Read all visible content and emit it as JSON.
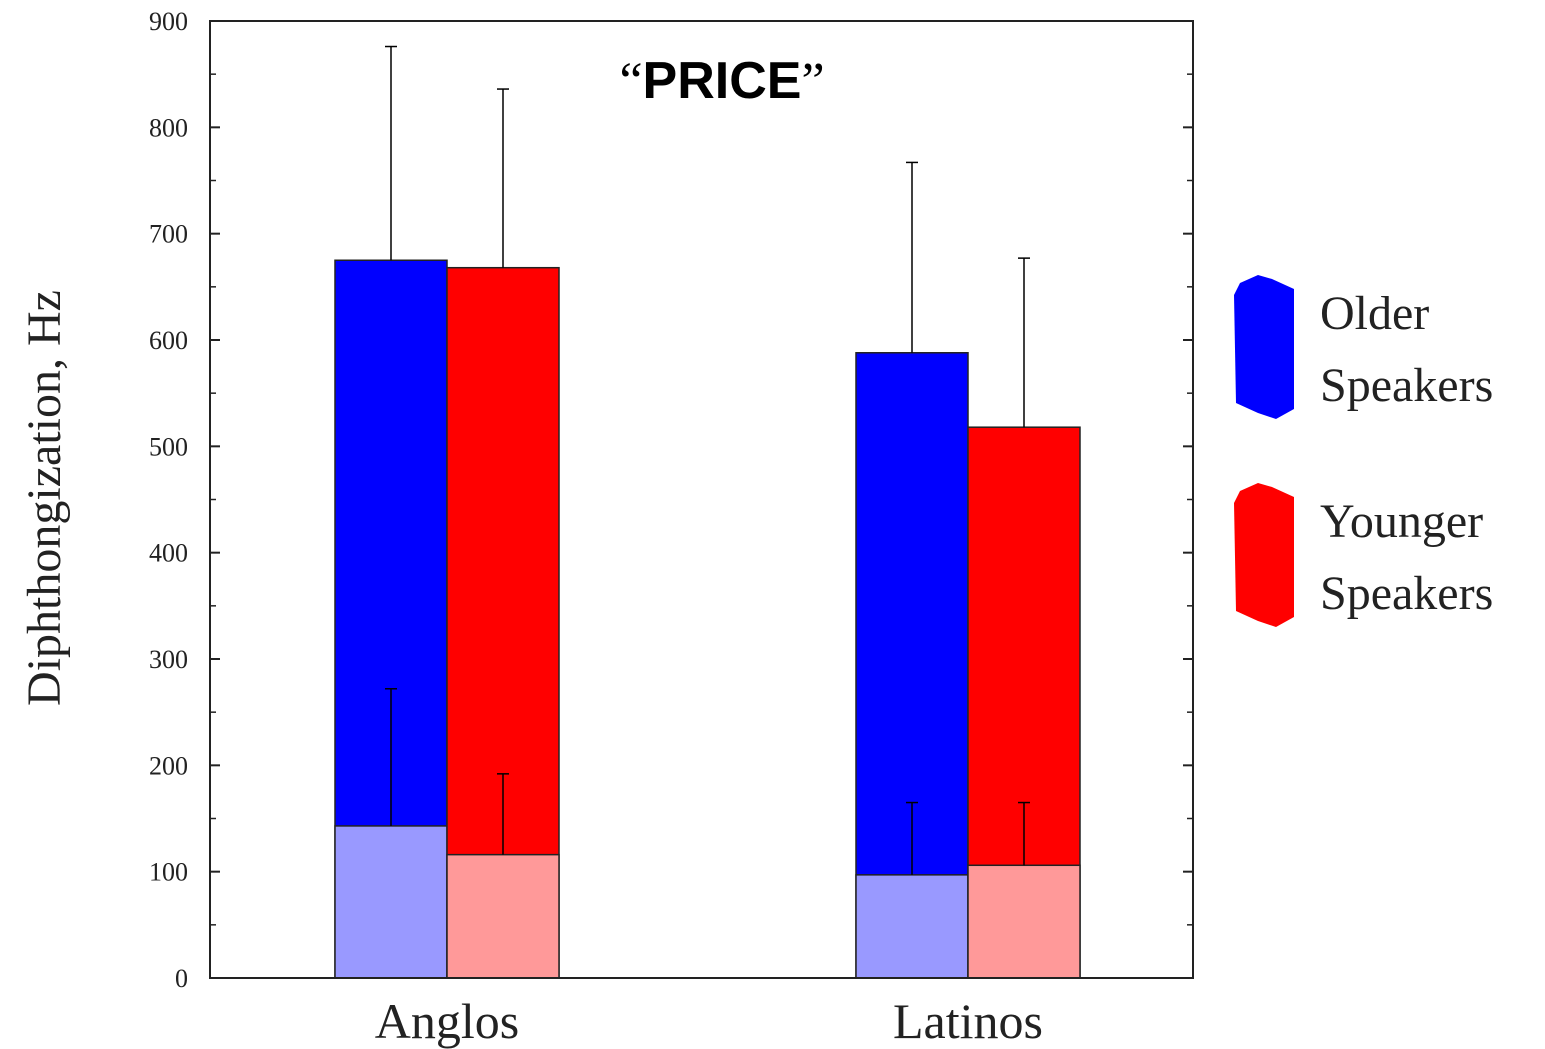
{
  "chart_data": {
    "type": "bar",
    "title": "PRICE",
    "title_quote_open": "“",
    "title_quote_close": "”",
    "ylabel": "Diphthongization, Hz",
    "xlabel": "",
    "ylim": [
      0,
      900
    ],
    "yticks": [
      0,
      100,
      200,
      300,
      400,
      500,
      600,
      700,
      800,
      900
    ],
    "categories": [
      "Anglos",
      "Latinos"
    ],
    "legend_position": "right",
    "grid": false,
    "series": [
      {
        "name": "Older Speakers",
        "legend_lines": [
          "Older",
          "Speakers"
        ],
        "color": "#0000ff",
        "light_color": "#9999ff",
        "values": [
          675,
          588
        ],
        "lower_values": [
          143,
          97
        ],
        "error_upper": [
          876,
          767
        ],
        "lower_error_upper": [
          272,
          165
        ]
      },
      {
        "name": "Younger Speakers",
        "legend_lines": [
          "Younger",
          "Speakers"
        ],
        "color": "#ff0000",
        "light_color": "#ff9999",
        "values": [
          668,
          518
        ],
        "lower_values": [
          116,
          106
        ],
        "error_upper": [
          836,
          677
        ],
        "lower_error_upper": [
          192,
          165
        ]
      }
    ]
  }
}
